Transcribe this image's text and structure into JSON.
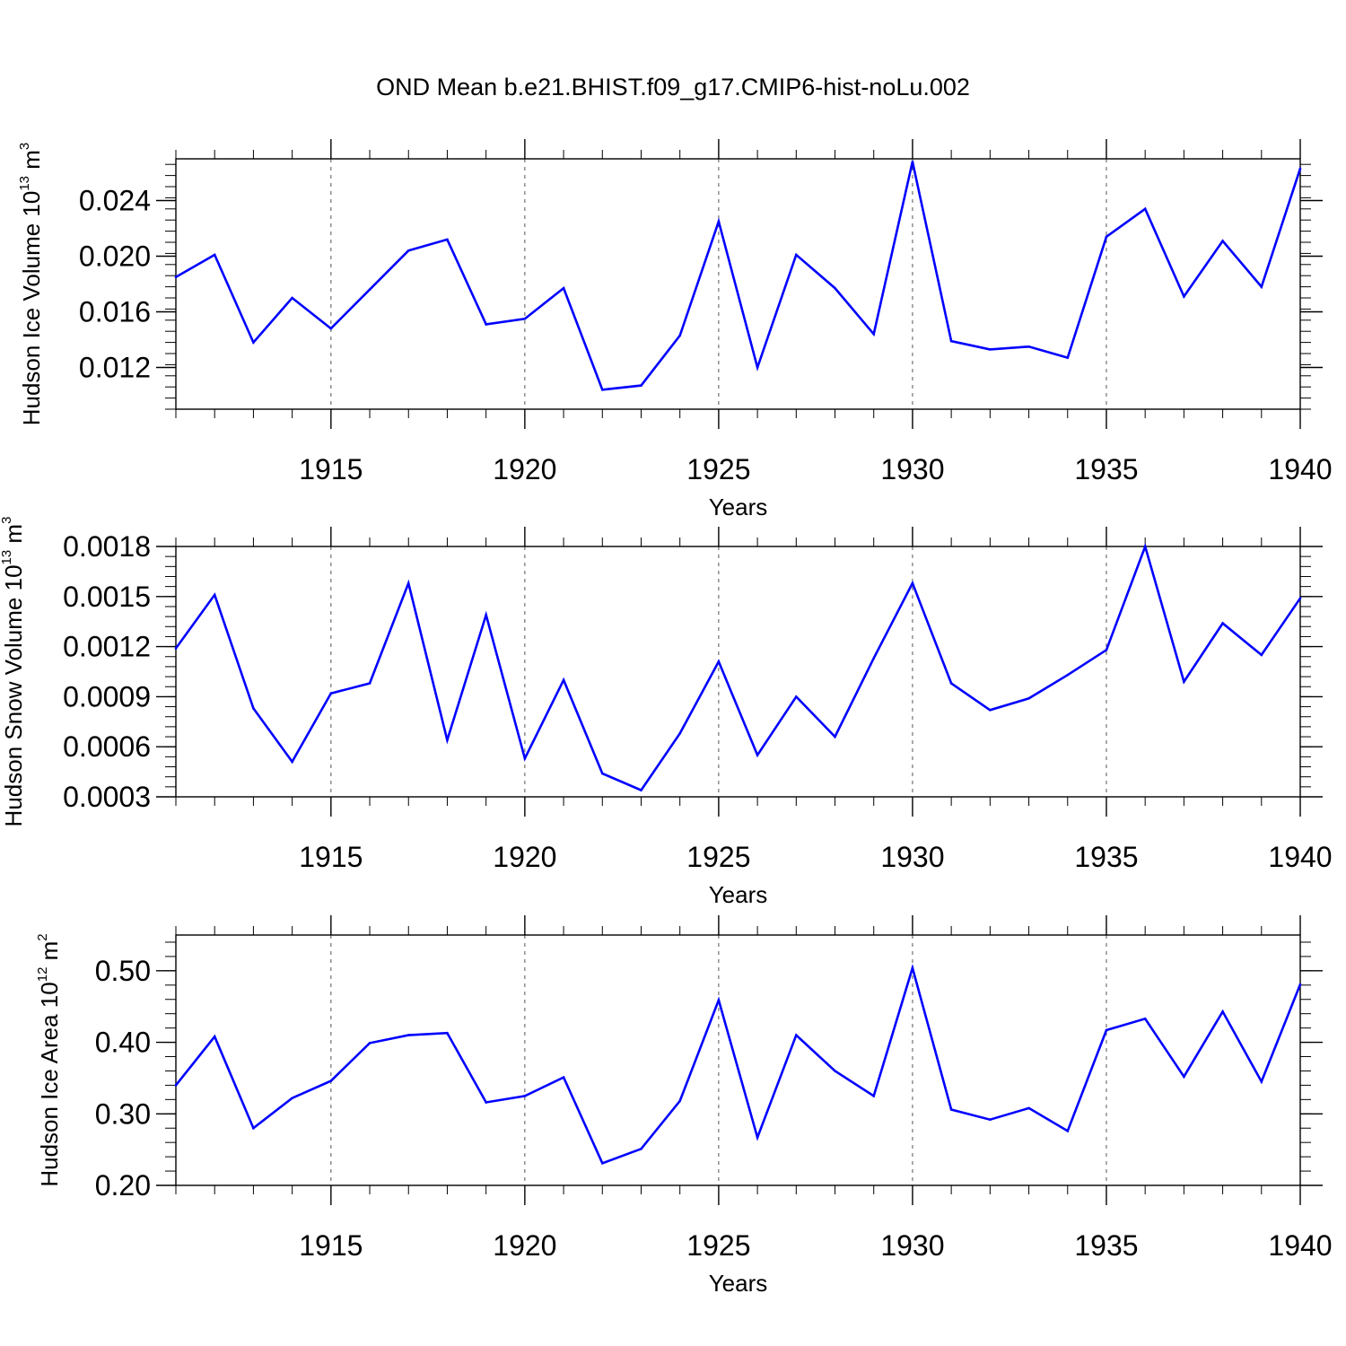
{
  "chart_data": {
    "title": "OND Mean b.e21.BHIST.f09_g17.CMIP6-hist-noLu.002",
    "type": "line",
    "x": [
      1911,
      1912,
      1913,
      1914,
      1915,
      1916,
      1917,
      1918,
      1919,
      1920,
      1921,
      1922,
      1923,
      1924,
      1925,
      1926,
      1927,
      1928,
      1929,
      1930,
      1931,
      1932,
      1933,
      1934,
      1935,
      1936,
      1937,
      1938,
      1939,
      1940
    ],
    "xlim": [
      1911,
      1940
    ],
    "x_ticks": [
      1915,
      1920,
      1925,
      1930,
      1935,
      1940
    ],
    "line_color": "#0000ff",
    "panels": [
      {
        "name": "ice-volume",
        "xlabel": "Years",
        "ylabel": "Hudson Ice Volume 10",
        "ylabel_exp": "13",
        "ylabel_unit": "m",
        "ylabel_unit_exp": "3",
        "ylim": [
          0.009,
          0.027
        ],
        "y_ticks": [
          0.012,
          0.016,
          0.02,
          0.024
        ],
        "y_tick_labels": [
          "0.012",
          "0.016",
          "0.020",
          "0.024"
        ],
        "values": [
          0.0185,
          0.0201,
          0.0138,
          0.017,
          0.0148,
          0.0176,
          0.0204,
          0.0212,
          0.0151,
          0.0155,
          0.0177,
          0.0104,
          0.0107,
          0.0143,
          0.0225,
          0.012,
          0.0201,
          0.0177,
          0.0144,
          0.0268,
          0.0139,
          0.0133,
          0.0135,
          0.0127,
          0.0214,
          0.0234,
          0.0171,
          0.0211,
          0.0178,
          0.0263
        ]
      },
      {
        "name": "snow-volume",
        "xlabel": "Years",
        "ylabel": "Hudson Snow Volume 10",
        "ylabel_exp": "13",
        "ylabel_unit": "m",
        "ylabel_unit_exp": "3",
        "ylim": [
          0.0003,
          0.0018
        ],
        "y_ticks": [
          0.0003,
          0.0006,
          0.0009,
          0.0012,
          0.0015,
          0.0018
        ],
        "y_tick_labels": [
          "0.0003",
          "0.0006",
          "0.0009",
          "0.0012",
          "0.0015",
          "0.0018"
        ],
        "values": [
          0.00119,
          0.00151,
          0.00083,
          0.00051,
          0.00092,
          0.00098,
          0.00158,
          0.00064,
          0.00139,
          0.00053,
          0.001,
          0.00044,
          0.00034,
          0.00068,
          0.00111,
          0.00055,
          0.0009,
          0.00066,
          0.00113,
          0.00158,
          0.00098,
          0.00082,
          0.00089,
          0.00103,
          0.00118,
          0.0018,
          0.00099,
          0.00134,
          0.00115,
          0.00149
        ]
      },
      {
        "name": "ice-area",
        "xlabel": "Years",
        "ylabel": "Hudson Ice Area 10",
        "ylabel_exp": "12",
        "ylabel_unit": "m",
        "ylabel_unit_exp": "2",
        "ylim": [
          0.2,
          0.55
        ],
        "y_ticks": [
          0.2,
          0.3,
          0.4,
          0.5
        ],
        "y_tick_labels": [
          "0.20",
          "0.30",
          "0.40",
          "0.50"
        ],
        "values": [
          0.34,
          0.408,
          0.28,
          0.322,
          0.346,
          0.399,
          0.41,
          0.413,
          0.316,
          0.325,
          0.351,
          0.231,
          0.251,
          0.318,
          0.459,
          0.267,
          0.41,
          0.36,
          0.325,
          0.504,
          0.306,
          0.292,
          0.308,
          0.276,
          0.417,
          0.433,
          0.352,
          0.443,
          0.345,
          0.481
        ]
      }
    ]
  }
}
